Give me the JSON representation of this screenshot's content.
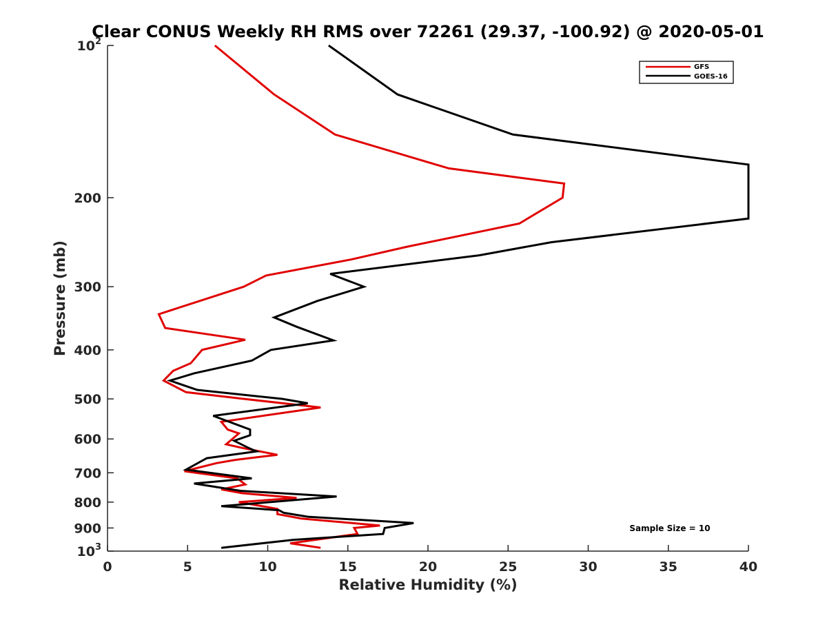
{
  "chart_data": {
    "type": "line",
    "title": "Clear CONUS Weekly RH RMS over 72261 (29.37, -100.92) @ 2020-05-01",
    "xlabel": "Relative Humidity (%)",
    "ylabel": "Pressure (mb)",
    "xlim": [
      0,
      40
    ],
    "ylim": [
      100,
      1000
    ],
    "y_scale": "log",
    "y_reversed": true,
    "x_ticks": [
      "0",
      "5",
      "10",
      "15",
      "20",
      "25",
      "30",
      "35",
      "40"
    ],
    "y_ticks": [
      {
        "value": 100,
        "base": "10",
        "exp": "2"
      },
      {
        "value": 200,
        "label": "200"
      },
      {
        "value": 300,
        "label": "300"
      },
      {
        "value": 400,
        "label": "400"
      },
      {
        "value": 500,
        "label": "500"
      },
      {
        "value": 600,
        "label": "600"
      },
      {
        "value": 700,
        "label": "700"
      },
      {
        "value": 800,
        "label": "800"
      },
      {
        "value": 900,
        "label": "900"
      },
      {
        "value": 1000,
        "base": "10",
        "exp": "3"
      }
    ],
    "legend_position": "top-right",
    "annotation": "Sample Size = 10",
    "series": [
      {
        "name": "GFS",
        "color": "#e00000",
        "points": [
          [
            6.7,
            100
          ],
          [
            10.4,
            125
          ],
          [
            14.2,
            150
          ],
          [
            21.3,
            175
          ],
          [
            28.5,
            187.5
          ],
          [
            28.4,
            200
          ],
          [
            25.7,
            225
          ],
          [
            18.7,
            250
          ],
          [
            15.2,
            265
          ],
          [
            9.9,
            285
          ],
          [
            8.5,
            300
          ],
          [
            3.2,
            340
          ],
          [
            3.6,
            362
          ],
          [
            8.6,
            382
          ],
          [
            5.9,
            400
          ],
          [
            5.2,
            425
          ],
          [
            4.1,
            440
          ],
          [
            3.5,
            460
          ],
          [
            4.9,
            485
          ],
          [
            8.5,
            500
          ],
          [
            13.3,
            520
          ],
          [
            7.1,
            555
          ],
          [
            7.5,
            575
          ],
          [
            8.2,
            585
          ],
          [
            7.4,
            615
          ],
          [
            8.4,
            625
          ],
          [
            10.6,
            645
          ],
          [
            8.0,
            660
          ],
          [
            6.8,
            670
          ],
          [
            4.8,
            695
          ],
          [
            8.1,
            718
          ],
          [
            8.6,
            738
          ],
          [
            7.1,
            755
          ],
          [
            8.4,
            768
          ],
          [
            11.8,
            785
          ],
          [
            8.2,
            800
          ],
          [
            10.6,
            825
          ],
          [
            10.6,
            845
          ],
          [
            12.1,
            862
          ],
          [
            17.0,
            890
          ],
          [
            15.4,
            900
          ],
          [
            15.6,
            925
          ],
          [
            11.4,
            965
          ],
          [
            13.3,
            985
          ]
        ]
      },
      {
        "name": "GOES-16",
        "color": "#000000",
        "points": [
          [
            13.8,
            100
          ],
          [
            18.1,
            125
          ],
          [
            25.3,
            150
          ],
          [
            40.0,
            172
          ],
          [
            40.0,
            220
          ],
          [
            27.7,
            245
          ],
          [
            23.2,
            260
          ],
          [
            13.9,
            283
          ],
          [
            16.0,
            300
          ],
          [
            13.1,
            320
          ],
          [
            10.4,
            345
          ],
          [
            11.8,
            360
          ],
          [
            14.1,
            383
          ],
          [
            10.2,
            400
          ],
          [
            9.0,
            420
          ],
          [
            5.4,
            445
          ],
          [
            3.9,
            460
          ],
          [
            5.6,
            480
          ],
          [
            10.9,
            500
          ],
          [
            12.5,
            510
          ],
          [
            6.6,
            540
          ],
          [
            8.9,
            575
          ],
          [
            8.9,
            590
          ],
          [
            7.9,
            605
          ],
          [
            8.8,
            625
          ],
          [
            9.3,
            635
          ],
          [
            6.2,
            655
          ],
          [
            4.9,
            690
          ],
          [
            9.0,
            718
          ],
          [
            5.4,
            735
          ],
          [
            8.3,
            760
          ],
          [
            14.3,
            780
          ],
          [
            7.1,
            815
          ],
          [
            10.7,
            830
          ],
          [
            11.0,
            840
          ],
          [
            12.5,
            855
          ],
          [
            19.1,
            880
          ],
          [
            17.3,
            900
          ],
          [
            17.2,
            925
          ],
          [
            11.6,
            950
          ],
          [
            7.1,
            985
          ]
        ]
      }
    ]
  }
}
